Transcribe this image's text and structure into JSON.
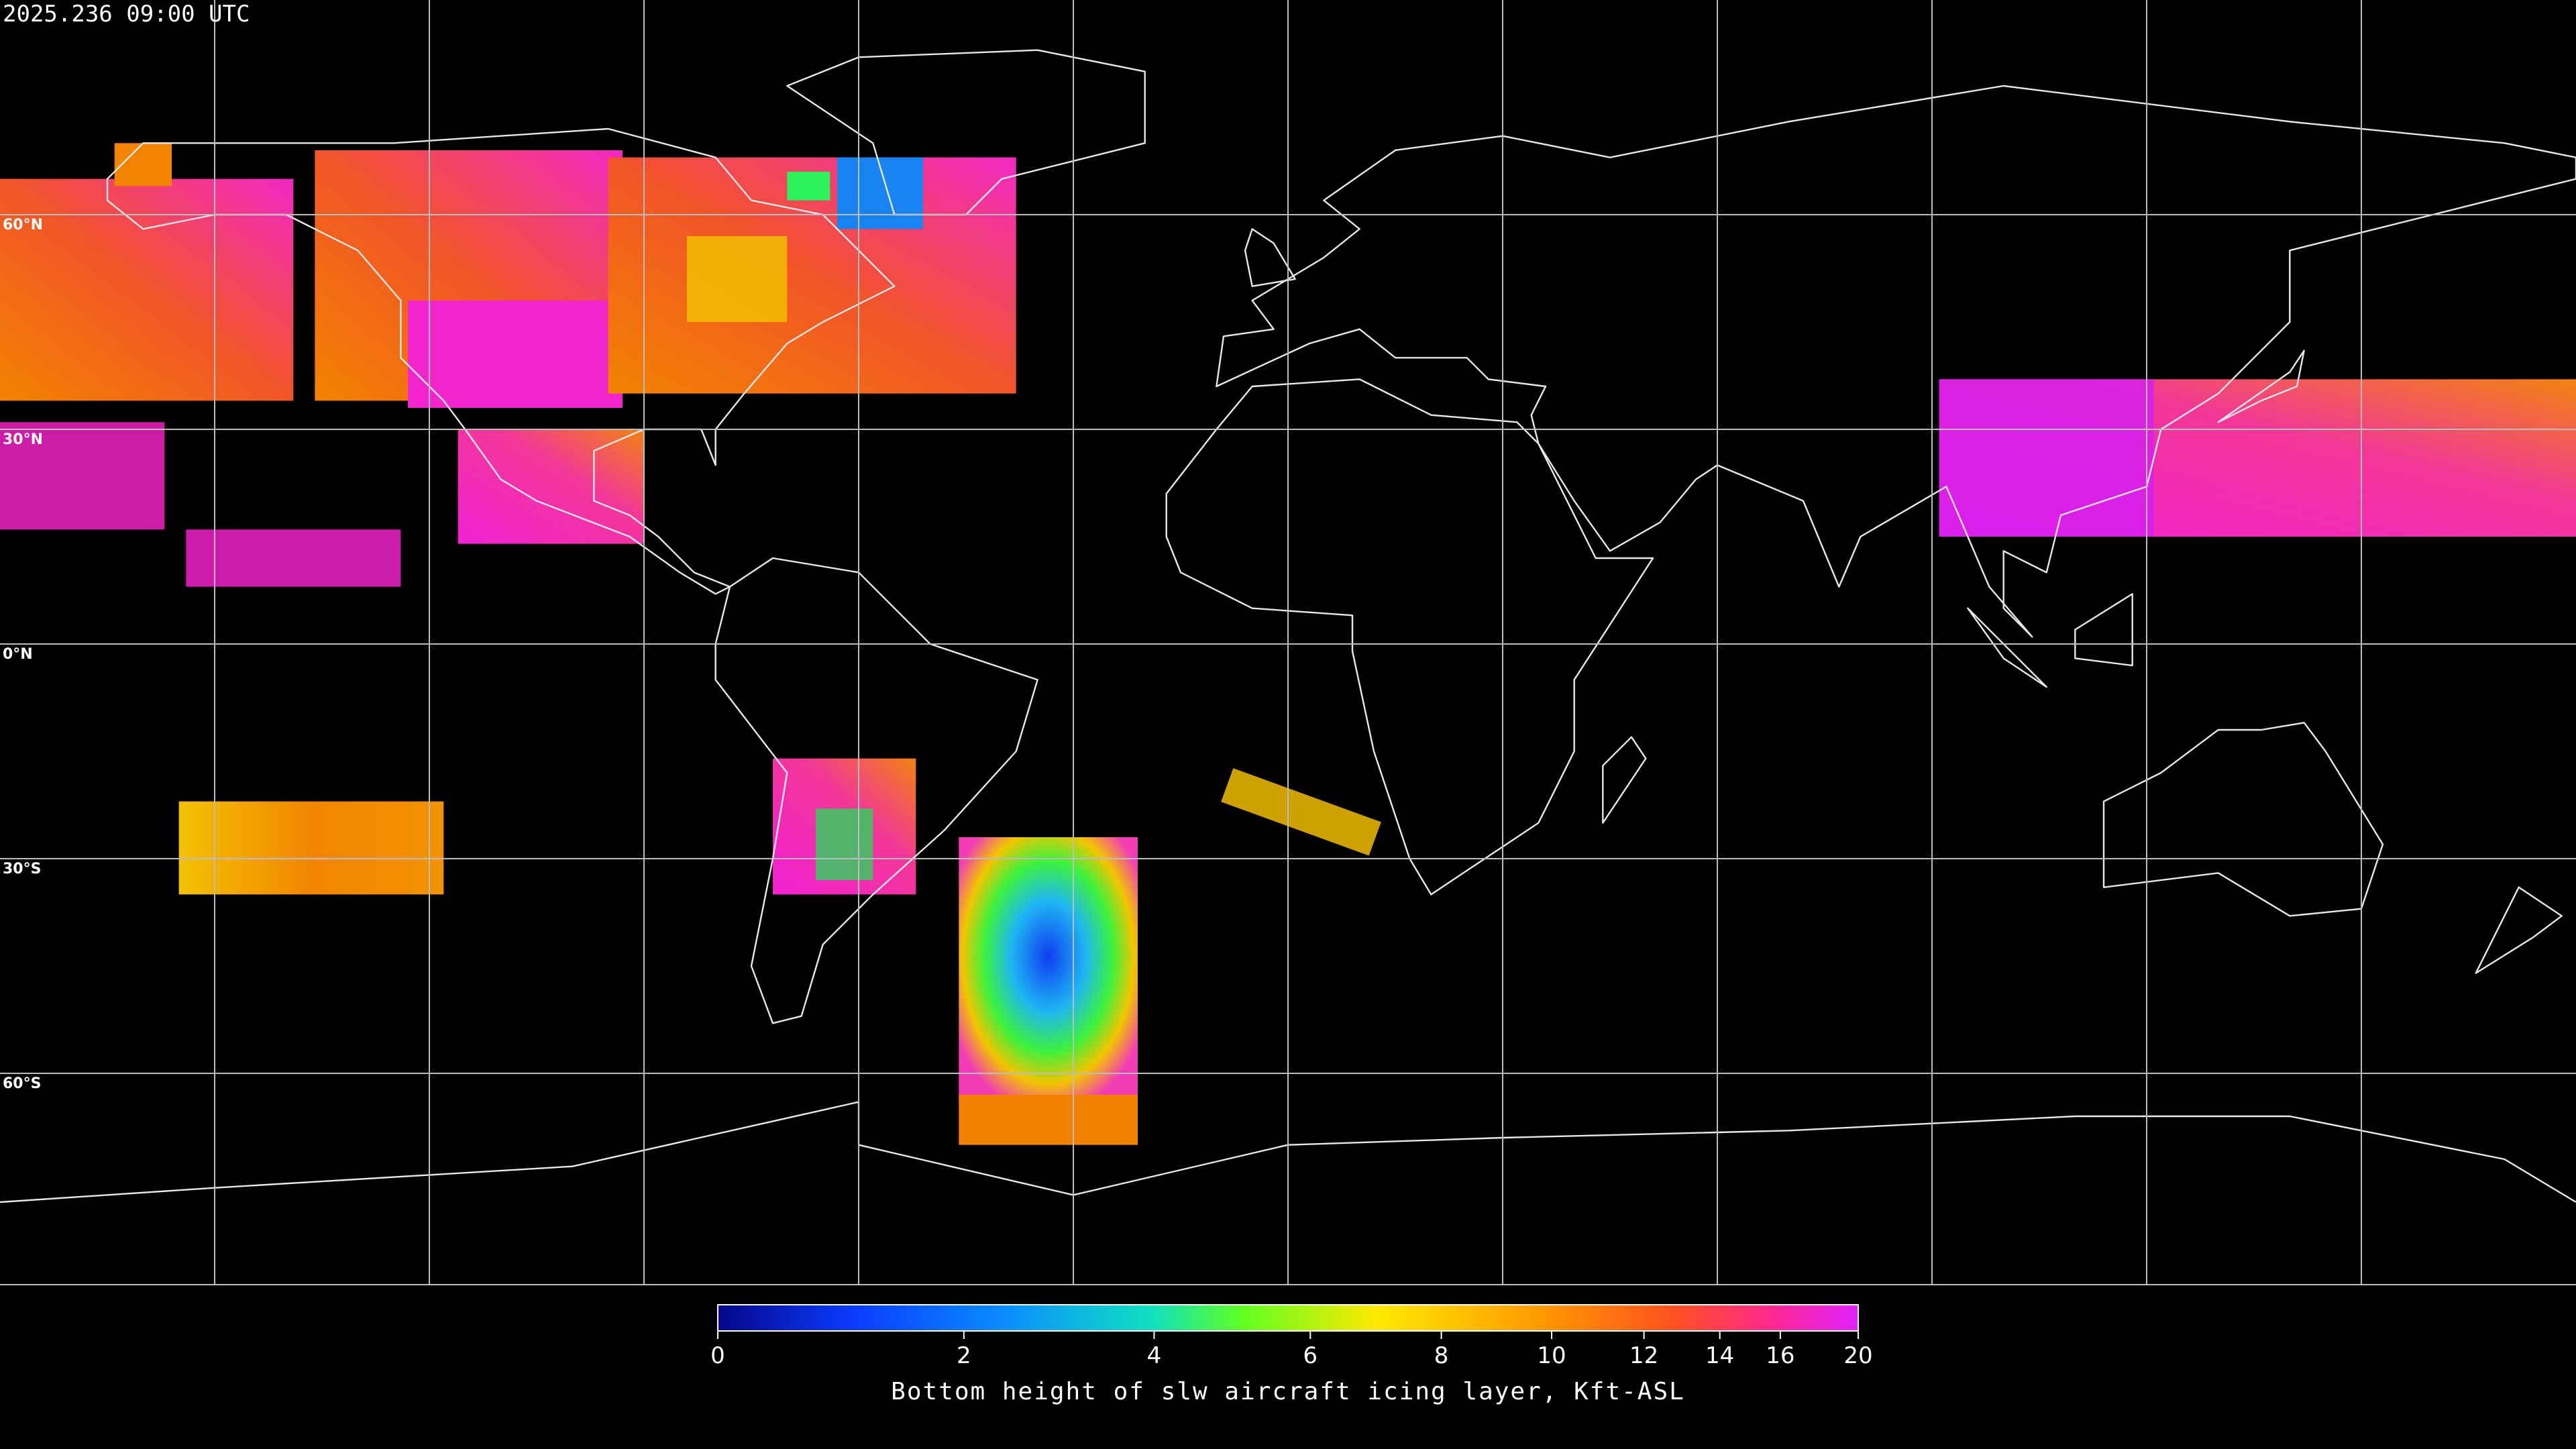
{
  "title": "2025.236 09:00 UTC",
  "map": {
    "latitude_labels": [
      "60°N",
      "30°N",
      "0°N",
      "30°S",
      "60°S"
    ]
  },
  "colorbar": {
    "lim": [
      0,
      20
    ],
    "ticks": [
      0,
      2,
      4,
      6,
      8,
      10,
      12,
      14,
      16,
      20
    ],
    "label": "Bottom height of slw aircraft icing layer, Kft-ASL"
  }
}
